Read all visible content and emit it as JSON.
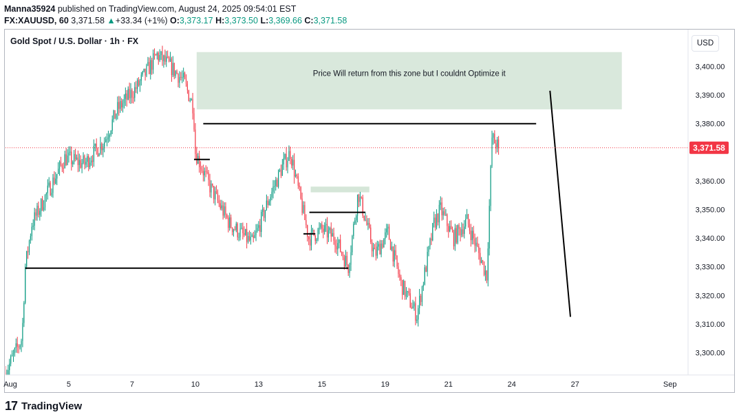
{
  "header": {
    "author": "Manna35924",
    "published_text": "published on TradingView.com, August 24, 2025 09:54:01 EST",
    "symbol": "FX:XAUUSD, 60",
    "last": "3,371.58",
    "change": "+33.34 (+1%)",
    "o_label": "O:",
    "o": "3,373.17",
    "h_label": "H:",
    "h": "3,373.50",
    "l_label": "L:",
    "l": "3,369.66",
    "c_label": "C:",
    "c": "3,371.58"
  },
  "chart_title": "Gold Spot / U.S. Dollar · 1h · FX",
  "currency_button": "USD",
  "brand": {
    "logo": "17",
    "name": "TradingView"
  },
  "colors": {
    "up": "#089981",
    "down": "#f23645",
    "zone": "#d5e6d8",
    "price_line": "#f23645"
  },
  "chart_data": {
    "type": "candlestick",
    "price_label": "3,371.58",
    "last_price": 3371.58,
    "ylim": [
      3292,
      3410
    ],
    "y_ticks": [
      {
        "v": 3400,
        "t": "3,400.00"
      },
      {
        "v": 3390,
        "t": "3,390.00"
      },
      {
        "v": 3380,
        "t": "3,380.00"
      },
      {
        "v": 3360,
        "t": "3,360.00"
      },
      {
        "v": 3350,
        "t": "3,350.00"
      },
      {
        "v": 3340,
        "t": "3,340.00"
      },
      {
        "v": 3330,
        "t": "3,330.00"
      },
      {
        "v": 3320,
        "t": "3,320.00"
      },
      {
        "v": 3310,
        "t": "3,310.00"
      },
      {
        "v": 3300,
        "t": "3,300.00"
      }
    ],
    "xlim": [
      0,
      1560
    ],
    "x_ticks": [
      {
        "h": 0,
        "t": "Aug"
      },
      {
        "h": 96,
        "t": "5"
      },
      {
        "h": 192,
        "t": "7"
      },
      {
        "h": 288,
        "t": "10"
      },
      {
        "h": 384,
        "t": "13"
      },
      {
        "h": 480,
        "t": "15"
      },
      {
        "h": 576,
        "t": "19"
      },
      {
        "h": 672,
        "t": "21"
      },
      {
        "h": 768,
        "t": "24"
      },
      {
        "h": 864,
        "t": "27"
      },
      {
        "h": 1008,
        "t": "Sep"
      }
    ],
    "anchors": [
      [
        0,
        3293
      ],
      [
        25,
        3305
      ],
      [
        30,
        3330
      ],
      [
        40,
        3345
      ],
      [
        90,
        3368
      ],
      [
        120,
        3366
      ],
      [
        150,
        3374
      ],
      [
        170,
        3385
      ],
      [
        200,
        3393
      ],
      [
        230,
        3404
      ],
      [
        250,
        3400
      ],
      [
        270,
        3395
      ],
      [
        285,
        3386
      ],
      [
        288,
        3370
      ],
      [
        310,
        3358
      ],
      [
        340,
        3345
      ],
      [
        375,
        3338
      ],
      [
        400,
        3354
      ],
      [
        420,
        3365
      ],
      [
        432,
        3370
      ],
      [
        460,
        3340
      ],
      [
        480,
        3343
      ],
      [
        500,
        3340
      ],
      [
        520,
        3330
      ],
      [
        535,
        3356
      ],
      [
        560,
        3334
      ],
      [
        580,
        3342
      ],
      [
        600,
        3324
      ],
      [
        624,
        3313
      ],
      [
        650,
        3345
      ],
      [
        660,
        3350
      ],
      [
        680,
        3340
      ],
      [
        700,
        3346
      ],
      [
        730,
        3327
      ],
      [
        738,
        3375
      ],
      [
        748,
        3371.58
      ]
    ],
    "annotations": {
      "zone": {
        "x0": 290,
        "x1": 935,
        "y0": 3385,
        "y1": 3405,
        "label": "Price Will return from this zone but I couldnt Optimize it"
      },
      "small_zone": {
        "x0": 463,
        "x1": 552,
        "y0": 3356,
        "y1": 3358
      },
      "lines": [
        {
          "x0": 30,
          "x1": 520,
          "y0": 3329.5,
          "y1": 3329.5
        },
        {
          "x0": 300,
          "x1": 805,
          "y0": 3380,
          "y1": 3380
        },
        {
          "x0": 286,
          "x1": 310,
          "y0": 3367.5,
          "y1": 3367.5
        },
        {
          "x0": 461,
          "x1": 546,
          "y0": 3349,
          "y1": 3349
        },
        {
          "x0": 452,
          "x1": 470,
          "y0": 3341.5,
          "y1": 3341.5
        },
        {
          "x0": 826,
          "x1": 857,
          "y0": 3391.5,
          "y1": 3312.5
        }
      ]
    }
  }
}
